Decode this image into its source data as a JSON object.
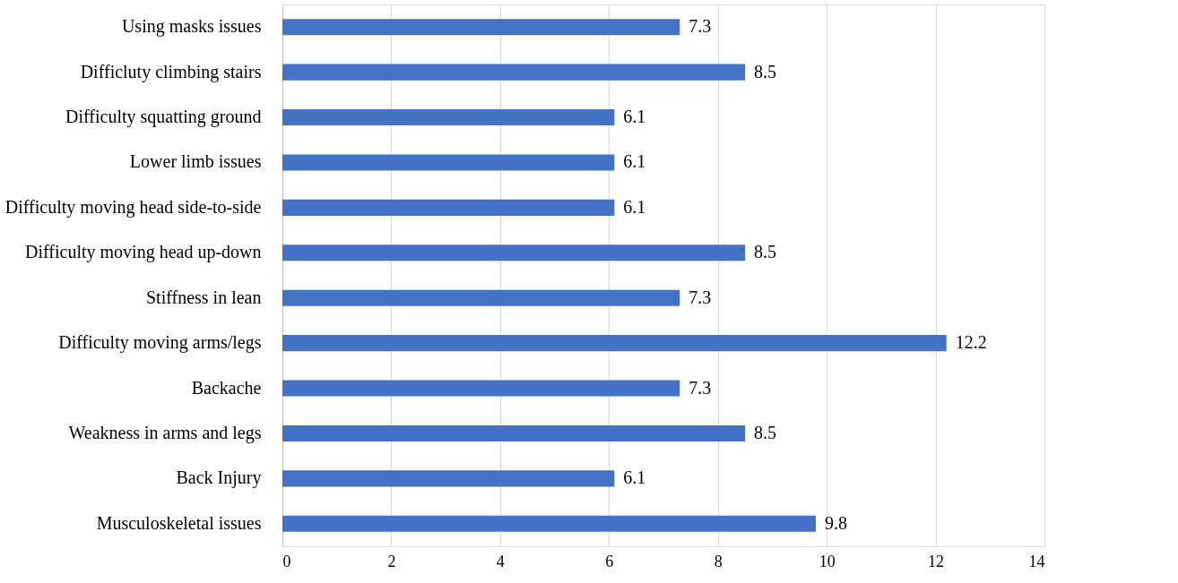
{
  "chart_data": {
    "type": "bar",
    "orientation": "horizontal",
    "categories": [
      "Using masks issues",
      "Difficluty climbing stairs",
      "Difficulty squatting ground",
      "Lower limb issues",
      "Difficulty moving head side-to-side",
      "Difficulty moving head up-down",
      "Stiffness in lean",
      "Difficulty moving arms/legs",
      "Backache",
      "Weakness in arms and legs",
      "Back Injury",
      "Musculoskeletal issues"
    ],
    "values": [
      7.3,
      8.5,
      6.1,
      6.1,
      6.1,
      8.5,
      7.3,
      12.2,
      7.3,
      8.5,
      6.1,
      9.8
    ],
    "color": "#4472c4",
    "xlim": [
      0,
      14
    ],
    "xticks": [
      0,
      2,
      4,
      6,
      8,
      10,
      12,
      14
    ],
    "grid": "x",
    "data_labels": true
  }
}
